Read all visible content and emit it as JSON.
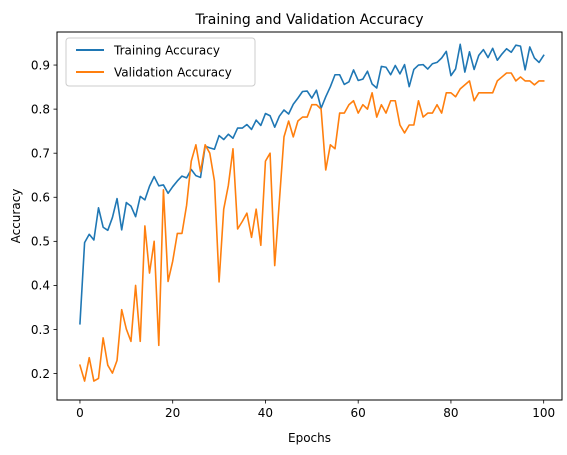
{
  "chart_data": {
    "type": "line",
    "title": "Training and Validation Accuracy",
    "xlabel": "Epochs",
    "ylabel": "Accuracy",
    "xlim": [
      -4.95,
      103.95
    ],
    "ylim": [
      0.14,
      0.975
    ],
    "xticks": [
      0,
      20,
      40,
      60,
      80,
      100
    ],
    "yticks": [
      0.2,
      0.3,
      0.4,
      0.5,
      0.6,
      0.7,
      0.8,
      0.9
    ],
    "xtick_labels": [
      "0",
      "20",
      "40",
      "60",
      "80",
      "100"
    ],
    "ytick_labels": [
      "0.2",
      "0.3",
      "0.4",
      "0.5",
      "0.6",
      "0.7",
      "0.8",
      "0.9"
    ],
    "grid": false,
    "legend_position": "upper-left",
    "series": [
      {
        "name": "Training Accuracy",
        "color": "#1f77b4",
        "values": [
          0.313,
          0.497,
          0.516,
          0.503,
          0.576,
          0.532,
          0.525,
          0.554,
          0.597,
          0.526,
          0.588,
          0.58,
          0.556,
          0.602,
          0.594,
          0.625,
          0.647,
          0.626,
          0.628,
          0.609,
          0.624,
          0.637,
          0.648,
          0.644,
          0.663,
          0.649,
          0.645,
          0.716,
          0.712,
          0.709,
          0.74,
          0.731,
          0.743,
          0.734,
          0.757,
          0.757,
          0.765,
          0.754,
          0.775,
          0.763,
          0.79,
          0.785,
          0.759,
          0.784,
          0.798,
          0.789,
          0.811,
          0.825,
          0.84,
          0.841,
          0.825,
          0.843,
          0.802,
          0.828,
          0.851,
          0.878,
          0.878,
          0.856,
          0.862,
          0.889,
          0.865,
          0.868,
          0.886,
          0.857,
          0.848,
          0.897,
          0.895,
          0.878,
          0.899,
          0.88,
          0.901,
          0.851,
          0.89,
          0.9,
          0.901,
          0.891,
          0.903,
          0.906,
          0.916,
          0.931,
          0.876,
          0.891,
          0.947,
          0.884,
          0.93,
          0.89,
          0.922,
          0.935,
          0.917,
          0.938,
          0.911,
          0.925,
          0.937,
          0.929,
          0.945,
          0.943,
          0.889,
          0.941,
          0.916,
          0.906,
          0.922
        ]
      },
      {
        "name": "Validation Accuracy",
        "color": "#ff7f0e",
        "values": [
          0.219,
          0.183,
          0.236,
          0.183,
          0.189,
          0.281,
          0.219,
          0.201,
          0.23,
          0.345,
          0.301,
          0.273,
          0.4,
          0.273,
          0.535,
          0.428,
          0.5,
          0.264,
          0.617,
          0.409,
          0.455,
          0.518,
          0.518,
          0.582,
          0.682,
          0.719,
          0.658,
          0.719,
          0.7,
          0.637,
          0.408,
          0.573,
          0.627,
          0.71,
          0.528,
          0.545,
          0.564,
          0.509,
          0.573,
          0.491,
          0.682,
          0.7,
          0.445,
          0.591,
          0.737,
          0.773,
          0.737,
          0.773,
          0.782,
          0.782,
          0.81,
          0.81,
          0.8,
          0.662,
          0.719,
          0.71,
          0.791,
          0.791,
          0.81,
          0.819,
          0.791,
          0.81,
          0.8,
          0.837,
          0.782,
          0.81,
          0.791,
          0.819,
          0.819,
          0.764,
          0.746,
          0.764,
          0.764,
          0.819,
          0.782,
          0.791,
          0.791,
          0.81,
          0.791,
          0.837,
          0.837,
          0.828,
          0.846,
          0.855,
          0.864,
          0.819,
          0.837,
          0.837,
          0.837,
          0.837,
          0.864,
          0.873,
          0.882,
          0.882,
          0.864,
          0.873,
          0.864,
          0.864,
          0.855,
          0.864,
          0.864
        ]
      }
    ]
  }
}
